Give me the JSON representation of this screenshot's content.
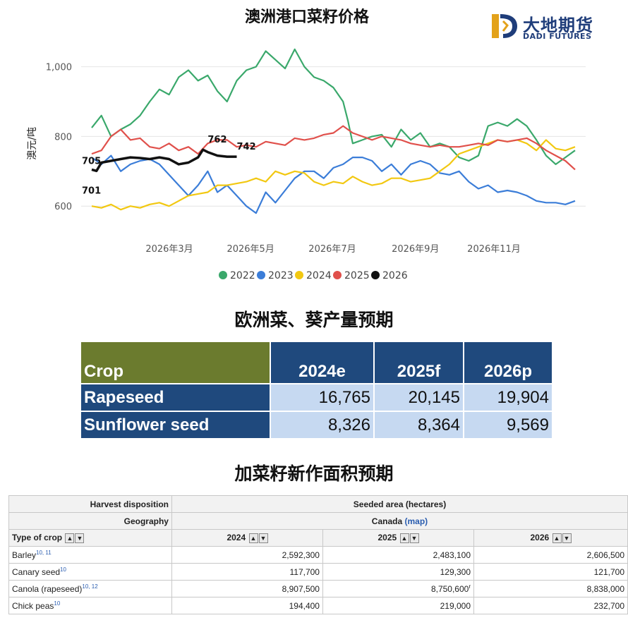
{
  "chart_title": "澳洲港口菜籽价格",
  "logo": {
    "zh": "大地期货",
    "en": "DADI FUTURES"
  },
  "chart_data": {
    "type": "line",
    "title": "澳洲港口菜籽价格",
    "ylabel": "澳元/吨",
    "ylim": [
      560,
      1070
    ],
    "yticks": [
      600,
      800,
      1000
    ],
    "ytick_labels": [
      "600",
      "800",
      "1,000"
    ],
    "xticks": [
      {
        "label": "2026年3月",
        "t": 0.212
      },
      {
        "label": "2026年5月",
        "t": 0.388
      },
      {
        "label": "2026年7月",
        "t": 0.565
      },
      {
        "label": "2026年9月",
        "t": 0.745
      },
      {
        "label": "2026年11月",
        "t": 0.915
      }
    ],
    "legend_position": "bottom",
    "annotations": [
      {
        "text": "705",
        "t": 0.0,
        "y": 705,
        "dy": -8
      },
      {
        "text": "701",
        "t": 0.0,
        "y": 701,
        "dy": 32
      },
      {
        "text": "762",
        "t": 0.24,
        "y": 762,
        "dy": -10
      },
      {
        "text": "742",
        "t": 0.3,
        "y": 742,
        "dy": -10
      }
    ],
    "series": [
      {
        "name": "2022",
        "color": "#3aa86b",
        "points": [
          [
            0,
            825
          ],
          [
            0.02,
            860
          ],
          [
            0.04,
            800
          ],
          [
            0.06,
            820
          ],
          [
            0.08,
            835
          ],
          [
            0.1,
            860
          ],
          [
            0.12,
            900
          ],
          [
            0.14,
            935
          ],
          [
            0.16,
            920
          ],
          [
            0.18,
            970
          ],
          [
            0.2,
            990
          ],
          [
            0.22,
            960
          ],
          [
            0.24,
            975
          ],
          [
            0.26,
            930
          ],
          [
            0.28,
            900
          ],
          [
            0.3,
            960
          ],
          [
            0.32,
            990
          ],
          [
            0.34,
            1000
          ],
          [
            0.36,
            1045
          ],
          [
            0.38,
            1020
          ],
          [
            0.4,
            995
          ],
          [
            0.42,
            1050
          ],
          [
            0.44,
            1000
          ],
          [
            0.46,
            970
          ],
          [
            0.48,
            960
          ],
          [
            0.5,
            940
          ],
          [
            0.52,
            900
          ],
          [
            0.53,
            845
          ],
          [
            0.54,
            780
          ],
          [
            0.56,
            790
          ],
          [
            0.58,
            800
          ],
          [
            0.6,
            805
          ],
          [
            0.62,
            770
          ],
          [
            0.64,
            820
          ],
          [
            0.66,
            790
          ],
          [
            0.68,
            810
          ],
          [
            0.7,
            770
          ],
          [
            0.72,
            780
          ],
          [
            0.74,
            770
          ],
          [
            0.76,
            740
          ],
          [
            0.78,
            730
          ],
          [
            0.8,
            745
          ],
          [
            0.82,
            830
          ],
          [
            0.84,
            840
          ],
          [
            0.86,
            830
          ],
          [
            0.88,
            850
          ],
          [
            0.9,
            830
          ],
          [
            0.92,
            790
          ],
          [
            0.94,
            745
          ],
          [
            0.96,
            720
          ],
          [
            0.98,
            740
          ],
          [
            1.0,
            760
          ]
        ]
      },
      {
        "name": "2023",
        "color": "#3b7dd8",
        "points": [
          [
            0,
            740
          ],
          [
            0.02,
            720
          ],
          [
            0.04,
            745
          ],
          [
            0.06,
            700
          ],
          [
            0.08,
            720
          ],
          [
            0.1,
            730
          ],
          [
            0.12,
            735
          ],
          [
            0.14,
            720
          ],
          [
            0.16,
            690
          ],
          [
            0.18,
            660
          ],
          [
            0.2,
            630
          ],
          [
            0.22,
            660
          ],
          [
            0.24,
            700
          ],
          [
            0.26,
            640
          ],
          [
            0.28,
            660
          ],
          [
            0.3,
            630
          ],
          [
            0.32,
            600
          ],
          [
            0.34,
            580
          ],
          [
            0.36,
            640
          ],
          [
            0.38,
            610
          ],
          [
            0.4,
            645
          ],
          [
            0.42,
            680
          ],
          [
            0.44,
            700
          ],
          [
            0.46,
            700
          ],
          [
            0.48,
            680
          ],
          [
            0.5,
            710
          ],
          [
            0.52,
            720
          ],
          [
            0.54,
            740
          ],
          [
            0.56,
            740
          ],
          [
            0.58,
            730
          ],
          [
            0.6,
            700
          ],
          [
            0.62,
            720
          ],
          [
            0.64,
            690
          ],
          [
            0.66,
            720
          ],
          [
            0.68,
            730
          ],
          [
            0.7,
            720
          ],
          [
            0.72,
            695
          ],
          [
            0.74,
            690
          ],
          [
            0.76,
            700
          ],
          [
            0.78,
            670
          ],
          [
            0.8,
            650
          ],
          [
            0.82,
            660
          ],
          [
            0.84,
            640
          ],
          [
            0.86,
            645
          ],
          [
            0.88,
            640
          ],
          [
            0.9,
            630
          ],
          [
            0.92,
            615
          ],
          [
            0.94,
            610
          ],
          [
            0.96,
            610
          ],
          [
            0.98,
            605
          ],
          [
            1.0,
            615
          ]
        ]
      },
      {
        "name": "2024",
        "color": "#f2c811",
        "points": [
          [
            0,
            600
          ],
          [
            0.02,
            595
          ],
          [
            0.04,
            605
          ],
          [
            0.06,
            590
          ],
          [
            0.08,
            600
          ],
          [
            0.1,
            595
          ],
          [
            0.12,
            605
          ],
          [
            0.14,
            610
          ],
          [
            0.16,
            600
          ],
          [
            0.18,
            615
          ],
          [
            0.2,
            630
          ],
          [
            0.22,
            635
          ],
          [
            0.24,
            640
          ],
          [
            0.26,
            660
          ],
          [
            0.28,
            660
          ],
          [
            0.3,
            665
          ],
          [
            0.32,
            670
          ],
          [
            0.34,
            680
          ],
          [
            0.36,
            670
          ],
          [
            0.38,
            700
          ],
          [
            0.4,
            690
          ],
          [
            0.42,
            700
          ],
          [
            0.44,
            695
          ],
          [
            0.46,
            670
          ],
          [
            0.48,
            660
          ],
          [
            0.5,
            670
          ],
          [
            0.52,
            665
          ],
          [
            0.54,
            685
          ],
          [
            0.56,
            670
          ],
          [
            0.58,
            660
          ],
          [
            0.6,
            665
          ],
          [
            0.62,
            680
          ],
          [
            0.64,
            680
          ],
          [
            0.66,
            670
          ],
          [
            0.68,
            675
          ],
          [
            0.7,
            680
          ],
          [
            0.72,
            700
          ],
          [
            0.74,
            720
          ],
          [
            0.76,
            750
          ],
          [
            0.78,
            760
          ],
          [
            0.8,
            770
          ],
          [
            0.82,
            780
          ],
          [
            0.84,
            790
          ],
          [
            0.86,
            785
          ],
          [
            0.88,
            790
          ],
          [
            0.9,
            780
          ],
          [
            0.92,
            760
          ],
          [
            0.94,
            790
          ],
          [
            0.96,
            765
          ],
          [
            0.98,
            760
          ],
          [
            1.0,
            770
          ]
        ]
      },
      {
        "name": "2025",
        "color": "#e0504b",
        "points": [
          [
            0,
            750
          ],
          [
            0.02,
            760
          ],
          [
            0.04,
            800
          ],
          [
            0.06,
            820
          ],
          [
            0.08,
            790
          ],
          [
            0.1,
            795
          ],
          [
            0.12,
            770
          ],
          [
            0.14,
            765
          ],
          [
            0.16,
            780
          ],
          [
            0.18,
            760
          ],
          [
            0.2,
            770
          ],
          [
            0.22,
            750
          ],
          [
            0.24,
            780
          ],
          [
            0.26,
            790
          ],
          [
            0.28,
            790
          ],
          [
            0.3,
            770
          ],
          [
            0.32,
            775
          ],
          [
            0.34,
            770
          ],
          [
            0.36,
            785
          ],
          [
            0.38,
            780
          ],
          [
            0.4,
            775
          ],
          [
            0.42,
            795
          ],
          [
            0.44,
            790
          ],
          [
            0.46,
            795
          ],
          [
            0.48,
            805
          ],
          [
            0.5,
            810
          ],
          [
            0.52,
            830
          ],
          [
            0.54,
            810
          ],
          [
            0.56,
            800
          ],
          [
            0.58,
            790
          ],
          [
            0.6,
            800
          ],
          [
            0.62,
            795
          ],
          [
            0.64,
            790
          ],
          [
            0.66,
            780
          ],
          [
            0.68,
            775
          ],
          [
            0.7,
            770
          ],
          [
            0.72,
            775
          ],
          [
            0.74,
            770
          ],
          [
            0.76,
            770
          ],
          [
            0.78,
            775
          ],
          [
            0.8,
            780
          ],
          [
            0.82,
            775
          ],
          [
            0.84,
            790
          ],
          [
            0.86,
            785
          ],
          [
            0.88,
            790
          ],
          [
            0.9,
            795
          ],
          [
            0.92,
            780
          ],
          [
            0.94,
            760
          ],
          [
            0.96,
            745
          ],
          [
            0.98,
            730
          ],
          [
            1.0,
            705
          ]
        ]
      },
      {
        "name": "2026",
        "color": "#111111",
        "bold": true,
        "points": [
          [
            0,
            705
          ],
          [
            0.01,
            701
          ],
          [
            0.02,
            725
          ],
          [
            0.04,
            730
          ],
          [
            0.06,
            735
          ],
          [
            0.08,
            740
          ],
          [
            0.1,
            738
          ],
          [
            0.12,
            735
          ],
          [
            0.14,
            740
          ],
          [
            0.16,
            735
          ],
          [
            0.18,
            720
          ],
          [
            0.2,
            725
          ],
          [
            0.22,
            740
          ],
          [
            0.23,
            762
          ],
          [
            0.24,
            755
          ],
          [
            0.26,
            745
          ],
          [
            0.28,
            742
          ],
          [
            0.3,
            742
          ]
        ]
      }
    ]
  },
  "eu_table": {
    "title": "欧洲菜、葵产量预期",
    "headers": [
      "Crop",
      "2024e",
      "2025f",
      "2026p"
    ],
    "rows": [
      [
        "Rapeseed",
        "16,765",
        "20,145",
        "19,904"
      ],
      [
        "Sunflower seed",
        "8,326",
        "8,364",
        "9,569"
      ]
    ]
  },
  "canada_table": {
    "title": "加菜籽新作面积预期",
    "harvest_label": "Harvest disposition",
    "harvest_value": "Seeded area (hectares)",
    "geo_label": "Geography",
    "geo_value": "Canada",
    "geo_link": "(map)",
    "crop_col": "Type of crop",
    "years": [
      "2024",
      "2025",
      "2026"
    ],
    "rows": [
      {
        "crop": "Barley",
        "sup": "10, 11",
        "v": [
          "2,592,300",
          "2,483,100",
          "2,606,500"
        ]
      },
      {
        "crop": "Canary seed",
        "sup": "10",
        "v": [
          "117,700",
          "129,300",
          "121,700"
        ]
      },
      {
        "crop": "Canola (rapeseed)",
        "sup": "10, 12",
        "v": [
          "8,907,500",
          "8,750,600",
          "8,838,000"
        ],
        "note": "r"
      },
      {
        "crop": "Chick peas",
        "sup": "10",
        "v": [
          "194,400",
          "219,000",
          "232,700"
        ]
      }
    ]
  }
}
